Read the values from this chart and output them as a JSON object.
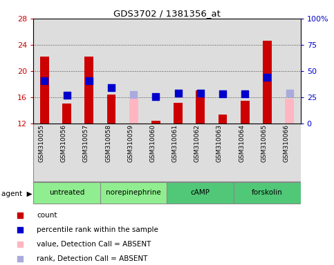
{
  "title": "GDS3702 / 1381356_at",
  "samples": [
    "GSM310055",
    "GSM310056",
    "GSM310057",
    "GSM310058",
    "GSM310059",
    "GSM310060",
    "GSM310061",
    "GSM310062",
    "GSM310063",
    "GSM310064",
    "GSM310065",
    "GSM310066"
  ],
  "group_configs": [
    {
      "label": "untreated",
      "indices": [
        0,
        1,
        2
      ],
      "color": "#90EE90"
    },
    {
      "label": "norepinephrine",
      "indices": [
        3,
        4,
        5
      ],
      "color": "#90EE90"
    },
    {
      "label": "cAMP",
      "indices": [
        6,
        7,
        8
      ],
      "color": "#50C878"
    },
    {
      "label": "forskolin",
      "indices": [
        9,
        10,
        11
      ],
      "color": "#50C878"
    }
  ],
  "bar_values": [
    22.2,
    15.0,
    22.2,
    16.4,
    null,
    12.4,
    15.1,
    17.0,
    13.3,
    15.4,
    24.6,
    null
  ],
  "bar_absent_values": [
    null,
    null,
    null,
    null,
    15.8,
    null,
    null,
    null,
    null,
    null,
    null,
    15.8
  ],
  "rank_values": [
    18.5,
    16.3,
    18.5,
    17.4,
    null,
    16.1,
    16.6,
    16.6,
    16.5,
    16.5,
    19.0,
    null
  ],
  "rank_absent_values": [
    null,
    null,
    null,
    null,
    16.4,
    null,
    null,
    null,
    null,
    null,
    null,
    16.6
  ],
  "ylim_left": [
    12,
    28
  ],
  "ylim_right": [
    0,
    100
  ],
  "yticks_left": [
    12,
    16,
    20,
    24,
    28
  ],
  "yticks_right": [
    0,
    25,
    50,
    75,
    100
  ],
  "ytick_labels_right": [
    "0",
    "25",
    "50",
    "75",
    "100%"
  ],
  "bar_color_present": "#CC0000",
  "bar_color_absent": "#FFB6C1",
  "rank_color_present": "#0000CC",
  "rank_color_absent": "#AAAADD",
  "bg_color": "#DDDDDD",
  "bar_width": 0.4,
  "rank_marker_size": 45
}
